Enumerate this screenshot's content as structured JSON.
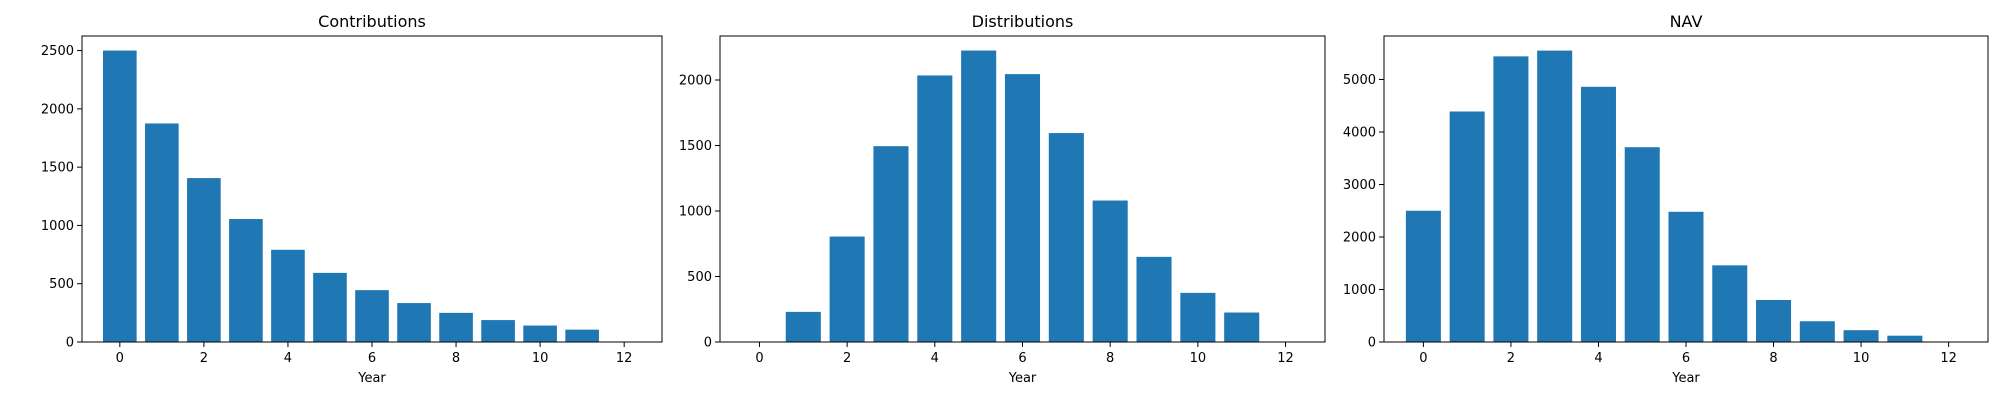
{
  "chart_data": [
    {
      "type": "bar",
      "title": "Contributions",
      "xlabel": "Year",
      "ylabel": "",
      "x": [
        0,
        1,
        2,
        3,
        4,
        5,
        6,
        7,
        8,
        9,
        10,
        11,
        12
      ],
      "values": [
        2500,
        1875,
        1406,
        1055,
        791,
        593,
        445,
        334,
        250,
        188,
        141,
        106,
        0
      ],
      "xticks": [
        "0",
        "2",
        "4",
        "6",
        "8",
        "10",
        "12"
      ],
      "yticks": [
        "0",
        "500",
        "1000",
        "1500",
        "2000",
        "2500"
      ],
      "xlim": [
        -0.9,
        12.9
      ],
      "ylim": [
        0,
        2625
      ],
      "grid": false,
      "color": "#1f77b4"
    },
    {
      "type": "bar",
      "title": "Distributions",
      "xlabel": "Year",
      "ylabel": "",
      "x": [
        0,
        1,
        2,
        3,
        4,
        5,
        6,
        7,
        8,
        9,
        10,
        11,
        12
      ],
      "values": [
        0,
        230,
        805,
        1495,
        2035,
        2225,
        2045,
        1595,
        1080,
        650,
        375,
        225,
        0
      ],
      "xticks": [
        "0",
        "2",
        "4",
        "6",
        "8",
        "10",
        "12"
      ],
      "yticks": [
        "0",
        "500",
        "1000",
        "1500",
        "2000"
      ],
      "xlim": [
        -0.9,
        12.9
      ],
      "ylim": [
        0,
        2336
      ],
      "grid": false,
      "color": "#1f77b4"
    },
    {
      "type": "bar",
      "title": "NAV",
      "xlabel": "Year",
      "ylabel": "",
      "x": [
        0,
        1,
        2,
        3,
        4,
        5,
        6,
        7,
        8,
        9,
        10,
        11,
        12
      ],
      "values": [
        2500,
        4390,
        5440,
        5550,
        4860,
        3710,
        2480,
        1460,
        800,
        395,
        225,
        120,
        0
      ],
      "xticks": [
        "0",
        "2",
        "4",
        "6",
        "8",
        "10",
        "12"
      ],
      "yticks": [
        "0",
        "1000",
        "2000",
        "3000",
        "4000",
        "5000"
      ],
      "xlim": [
        -0.9,
        12.9
      ],
      "ylim": [
        0,
        5828
      ],
      "grid": false,
      "color": "#1f77b4"
    }
  ]
}
